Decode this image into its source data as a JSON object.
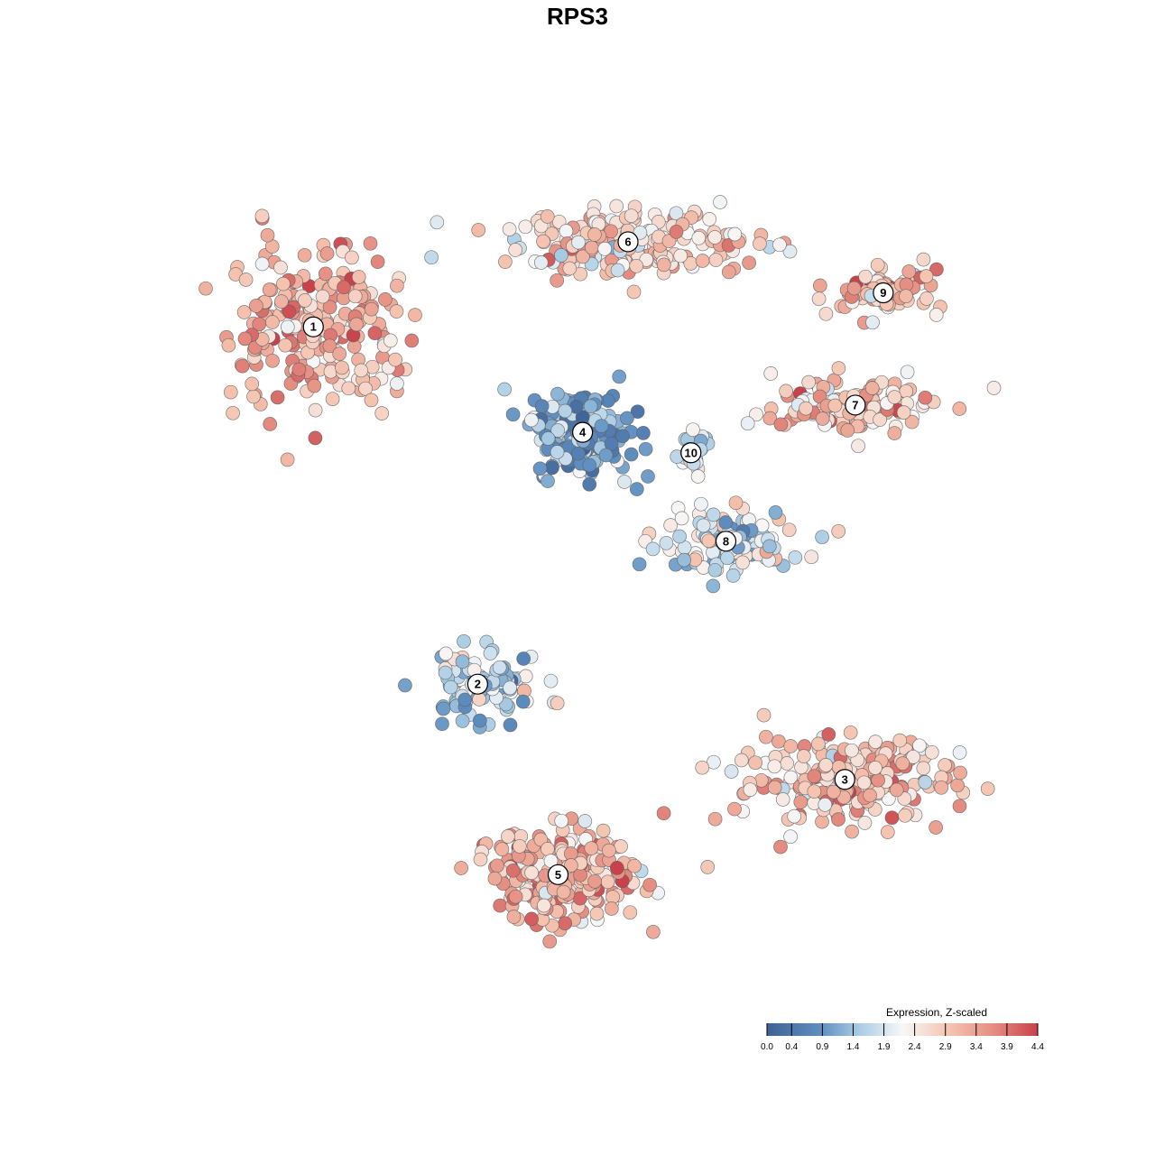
{
  "chart_data": {
    "type": "scatter",
    "title": "RPS3",
    "gene": "RPS3",
    "xlabel": "",
    "ylabel": "",
    "grid": false,
    "axes_visible": false,
    "legend": {
      "title": "Expression, Z-scaled",
      "placement": "bottom-right",
      "ticks": [
        "0.0",
        "0.4",
        "0.9",
        "1.4",
        "1.9",
        "2.4",
        "2.9",
        "3.4",
        "3.9",
        "4.4"
      ],
      "range": [
        0.0,
        4.4
      ]
    },
    "colors": {
      "low": "#3f6196",
      "mid_low": "#8fbbda",
      "mid": "#f7f7f7",
      "mid_high": "#f2b39b",
      "high": "#c8414b",
      "point_outline": "#606060"
    },
    "clusters": [
      {
        "label": "1",
        "center": [
          -0.82,
          0.73
        ],
        "mean_expression": 3.2
      },
      {
        "label": "2",
        "center": [
          -0.35,
          -0.32
        ],
        "mean_expression": 1.5
      },
      {
        "label": "3",
        "center": [
          0.7,
          -0.6
        ],
        "mean_expression": 3.0
      },
      {
        "label": "4",
        "center": [
          -0.05,
          0.42
        ],
        "mean_expression": 1.1
      },
      {
        "label": "5",
        "center": [
          -0.12,
          -0.88
        ],
        "mean_expression": 3.1
      },
      {
        "label": "6",
        "center": [
          0.08,
          0.98
        ],
        "mean_expression": 2.8
      },
      {
        "label": "7",
        "center": [
          0.73,
          0.5
        ],
        "mean_expression": 2.9
      },
      {
        "label": "8",
        "center": [
          0.36,
          0.1
        ],
        "mean_expression": 1.9
      },
      {
        "label": "9",
        "center": [
          0.81,
          0.83
        ],
        "mean_expression": 3.1
      },
      {
        "label": "10",
        "center": [
          0.26,
          0.36
        ],
        "mean_expression": 2.0
      }
    ],
    "xlim": [
      -1.2,
      1.2
    ],
    "ylim": [
      -1.2,
      1.2
    ]
  }
}
